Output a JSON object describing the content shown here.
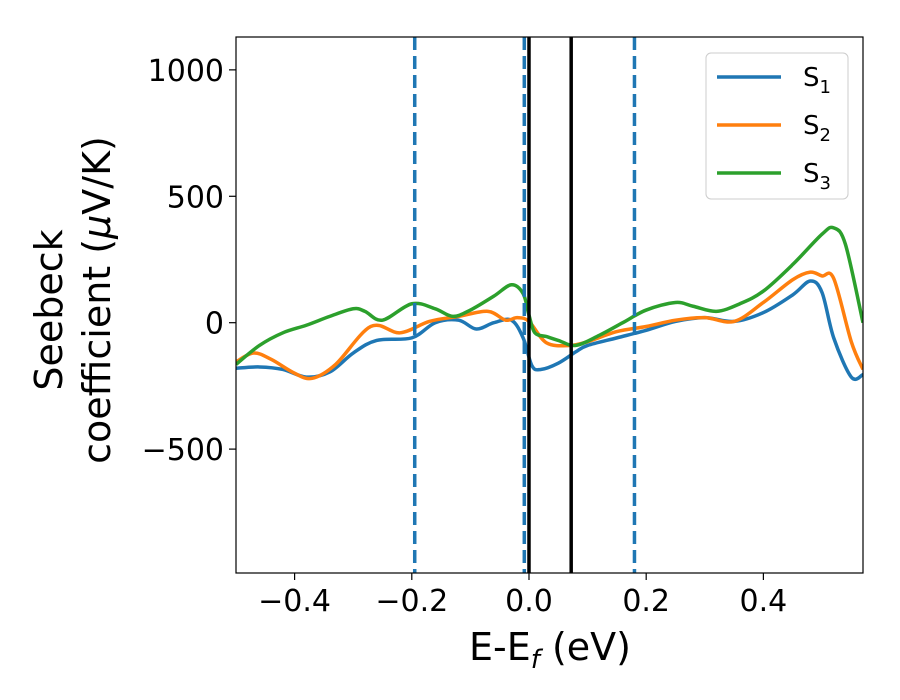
{
  "chart_data": {
    "type": "line",
    "xlabel": {
      "base": "E-E",
      "sub": "f",
      "suffix": " (eV)"
    },
    "ylabel": {
      "line1": "Seebeck",
      "line2": "coefficient  (",
      "mu": "μ",
      "unit": "V/K)"
    },
    "xlim": [
      -0.5,
      0.57
    ],
    "ylim": [
      -990,
      1130
    ],
    "xticks": [
      -0.4,
      -0.2,
      0.0,
      0.2,
      0.4
    ],
    "xtick_labels": [
      "−0.4",
      "−0.2",
      "0.0",
      "0.2",
      "0.4"
    ],
    "yticks": [
      -500,
      0,
      500,
      1000
    ],
    "ytick_labels": [
      "−500",
      "0",
      "500",
      "1000"
    ],
    "grid": false,
    "legend_position": "top-right",
    "vlines": [
      {
        "x": -0.195,
        "style": "dashed",
        "color": "#1f77b4"
      },
      {
        "x": -0.008,
        "style": "dashed",
        "color": "#1f77b4"
      },
      {
        "x": 0.18,
        "style": "dashed",
        "color": "#1f77b4"
      },
      {
        "x": 0.0,
        "style": "solid",
        "color": "#000000"
      },
      {
        "x": 0.072,
        "style": "solid",
        "color": "#000000"
      }
    ],
    "series": [
      {
        "name": "S",
        "sub": "1",
        "color": "#1f77b4",
        "x": [
          -0.5,
          -0.46,
          -0.42,
          -0.38,
          -0.34,
          -0.3,
          -0.26,
          -0.2,
          -0.16,
          -0.12,
          -0.09,
          -0.06,
          -0.03,
          -0.01,
          0.005,
          0.02,
          0.05,
          0.08,
          0.1,
          0.15,
          0.2,
          0.25,
          0.3,
          0.35,
          0.4,
          0.45,
          0.48,
          0.5,
          0.52,
          0.55,
          0.57
        ],
        "y": [
          -180,
          -175,
          -185,
          -215,
          -195,
          -120,
          -70,
          -60,
          0,
          10,
          -25,
          0,
          10,
          -60,
          -170,
          -185,
          -160,
          -115,
          -90,
          -60,
          -30,
          5,
          20,
          5,
          40,
          110,
          165,
          120,
          -60,
          -215,
          -205
        ]
      },
      {
        "name": "S",
        "sub": "2",
        "color": "#ff7f0e",
        "x": [
          -0.5,
          -0.47,
          -0.44,
          -0.4,
          -0.37,
          -0.33,
          -0.27,
          -0.22,
          -0.17,
          -0.12,
          -0.07,
          -0.04,
          -0.02,
          0.0,
          0.03,
          0.07,
          0.1,
          0.15,
          0.2,
          0.25,
          0.3,
          0.35,
          0.4,
          0.45,
          0.48,
          0.5,
          0.52,
          0.55,
          0.57
        ],
        "y": [
          -155,
          -120,
          -145,
          -200,
          -220,
          -165,
          -15,
          -40,
          5,
          25,
          45,
          10,
          20,
          5,
          -80,
          -90,
          -75,
          -35,
          -15,
          10,
          20,
          5,
          80,
          170,
          200,
          185,
          175,
          -75,
          -185
        ]
      },
      {
        "name": "S",
        "sub": "3",
        "color": "#2ca02c",
        "x": [
          -0.5,
          -0.46,
          -0.42,
          -0.38,
          -0.34,
          -0.3,
          -0.28,
          -0.25,
          -0.2,
          -0.16,
          -0.13,
          -0.1,
          -0.06,
          -0.03,
          -0.01,
          0.0,
          0.01,
          0.03,
          0.05,
          0.08,
          0.12,
          0.16,
          0.2,
          0.25,
          0.28,
          0.32,
          0.36,
          0.4,
          0.45,
          0.5,
          0.52,
          0.54,
          0.57
        ],
        "y": [
          -165,
          -90,
          -40,
          -10,
          25,
          55,
          45,
          10,
          75,
          55,
          25,
          50,
          105,
          150,
          115,
          30,
          -40,
          -55,
          -70,
          -90,
          -50,
          0,
          50,
          80,
          65,
          45,
          75,
          125,
          230,
          350,
          375,
          310,
          0
        ]
      }
    ]
  }
}
